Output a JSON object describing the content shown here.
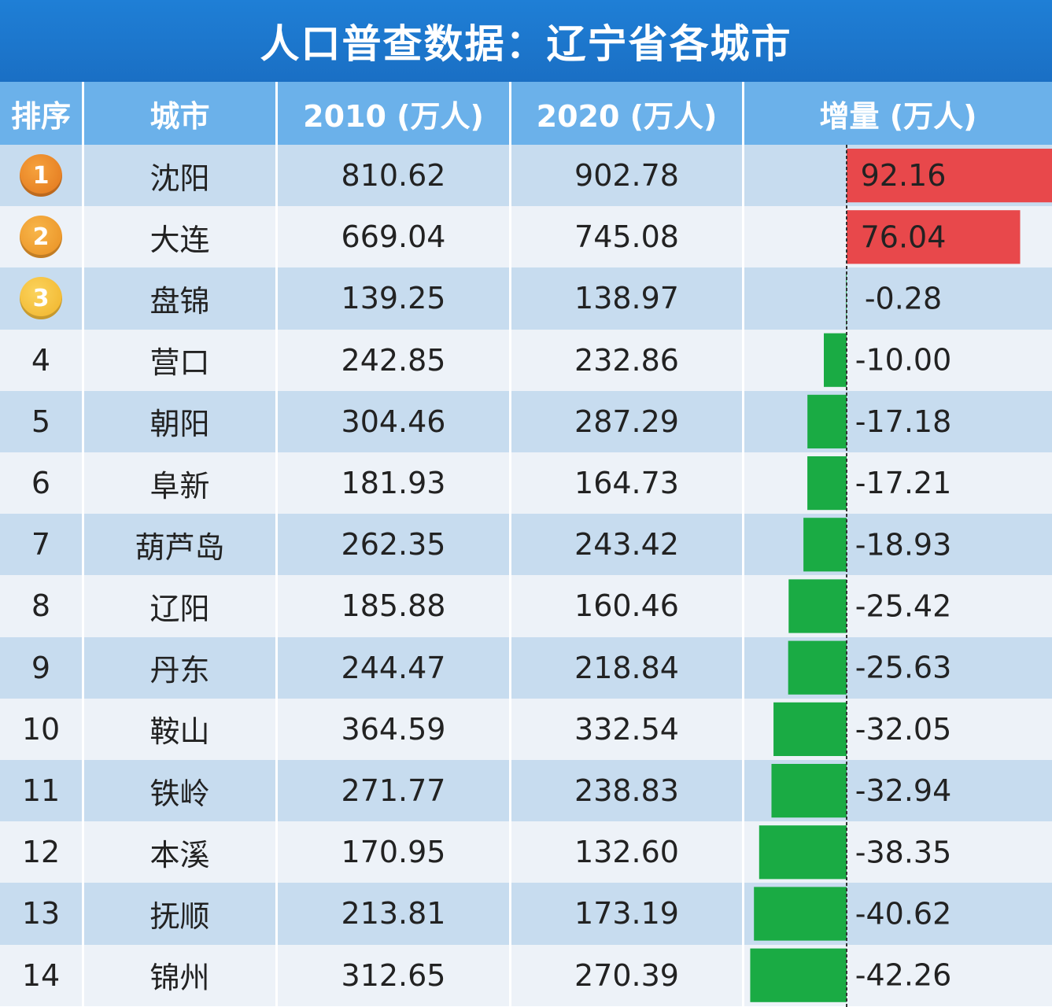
{
  "title": "人口普查数据：辽宁省各城市",
  "headers": {
    "rank": "排序",
    "city": "城市",
    "y2010": "2010 (万人)",
    "y2020": "2020 (万人)",
    "change": "增量 (万人)"
  },
  "rows": [
    {
      "rank": "1",
      "city": "沈阳",
      "y2010": "810.62",
      "y2020": "902.78",
      "change": "92.16"
    },
    {
      "rank": "2",
      "city": "大连",
      "y2010": "669.04",
      "y2020": "745.08",
      "change": "76.04"
    },
    {
      "rank": "3",
      "city": "盘锦",
      "y2010": "139.25",
      "y2020": "138.97",
      "change": "-0.28"
    },
    {
      "rank": "4",
      "city": "营口",
      "y2010": "242.85",
      "y2020": "232.86",
      "change": "-10.00"
    },
    {
      "rank": "5",
      "city": "朝阳",
      "y2010": "304.46",
      "y2020": "287.29",
      "change": "-17.18"
    },
    {
      "rank": "6",
      "city": "阜新",
      "y2010": "181.93",
      "y2020": "164.73",
      "change": "-17.21"
    },
    {
      "rank": "7",
      "city": "葫芦岛",
      "y2010": "262.35",
      "y2020": "243.42",
      "change": "-18.93"
    },
    {
      "rank": "8",
      "city": "辽阳",
      "y2010": "185.88",
      "y2020": "160.46",
      "change": "-25.42"
    },
    {
      "rank": "9",
      "city": "丹东",
      "y2010": "244.47",
      "y2020": "218.84",
      "change": "-25.63"
    },
    {
      "rank": "10",
      "city": "鞍山",
      "y2010": "364.59",
      "y2020": "332.54",
      "change": "-32.05"
    },
    {
      "rank": "11",
      "city": "铁岭",
      "y2010": "271.77",
      "y2020": "238.83",
      "change": "-32.94"
    },
    {
      "rank": "12",
      "city": "本溪",
      "y2010": "170.95",
      "y2020": "132.60",
      "change": "-38.35"
    },
    {
      "rank": "13",
      "city": "抚顺",
      "y2010": "213.81",
      "y2020": "173.19",
      "change": "-40.62"
    },
    {
      "rank": "14",
      "city": "锦州",
      "y2010": "312.65",
      "y2020": "270.39",
      "change": "-42.26"
    }
  ],
  "chart_data": {
    "type": "table",
    "title": "人口普查数据：辽宁省各城市",
    "columns": [
      "排序",
      "城市",
      "2010 (万人)",
      "2020 (万人)",
      "增量 (万人)"
    ],
    "categories": [
      "沈阳",
      "大连",
      "盘锦",
      "营口",
      "朝阳",
      "阜新",
      "葫芦岛",
      "辽阳",
      "丹东",
      "鞍山",
      "铁岭",
      "本溪",
      "抚顺",
      "锦州"
    ],
    "series": [
      {
        "name": "2010 (万人)",
        "values": [
          810.62,
          669.04,
          139.25,
          242.85,
          304.46,
          181.93,
          262.35,
          185.88,
          244.47,
          364.59,
          271.77,
          170.95,
          213.81,
          312.65
        ]
      },
      {
        "name": "2020 (万人)",
        "values": [
          902.78,
          745.08,
          138.97,
          232.86,
          287.29,
          164.73,
          243.42,
          160.46,
          218.84,
          332.54,
          238.83,
          132.6,
          173.19,
          270.39
        ]
      },
      {
        "name": "增量 (万人)",
        "values": [
          92.16,
          76.04,
          -0.28,
          -10.0,
          -17.18,
          -17.21,
          -18.93,
          -25.42,
          -25.63,
          -32.05,
          -32.94,
          -38.35,
          -40.62,
          -42.26
        ]
      }
    ],
    "bar_colors": {
      "positive": "#e8484b",
      "negative": "#1aab44"
    }
  }
}
